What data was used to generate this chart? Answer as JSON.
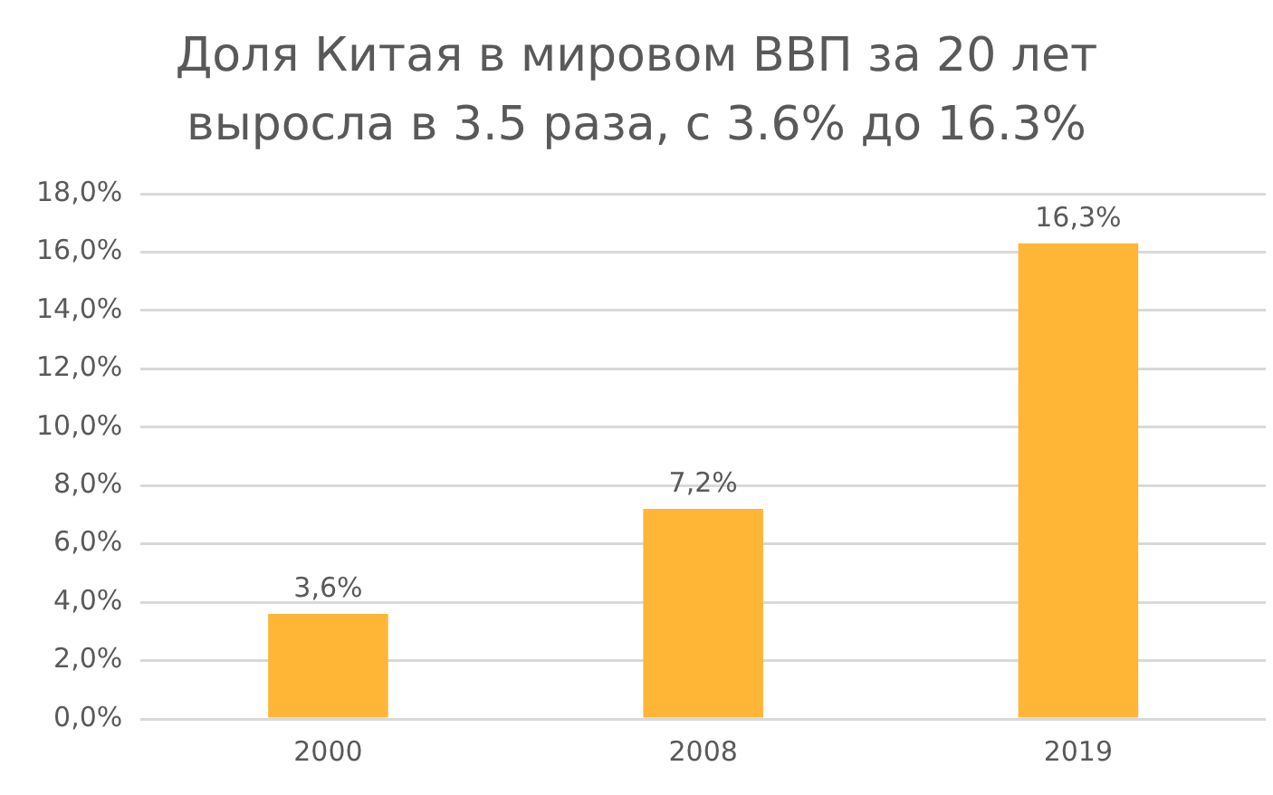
{
  "chart_data": {
    "type": "bar",
    "title": "Доля Китая в мировом ВВП за 20 лет выросла в 3.5 раза, с 3.6% до 16.3%",
    "categories": [
      "2000",
      "2008",
      "2019"
    ],
    "values": [
      3.6,
      7.2,
      16.3
    ],
    "color": "#ffb637",
    "value_labels": [
      "3,6%",
      "7,2%",
      "16,3%"
    ],
    "ylim": [
      0,
      18
    ],
    "yticks": [
      {
        "value": 0,
        "label": "0,0%"
      },
      {
        "value": 2,
        "label": "2,0%"
      },
      {
        "value": 4,
        "label": "4,0%"
      },
      {
        "value": 6,
        "label": "6,0%"
      },
      {
        "value": 8,
        "label": "8,0%"
      },
      {
        "value": 10,
        "label": "10,0%"
      },
      {
        "value": 12,
        "label": "12,0%"
      },
      {
        "value": 14,
        "label": "14,0%"
      },
      {
        "value": 16,
        "label": "16,0%"
      },
      {
        "value": 18,
        "label": "18,0%"
      }
    ],
    "grid": "y"
  }
}
